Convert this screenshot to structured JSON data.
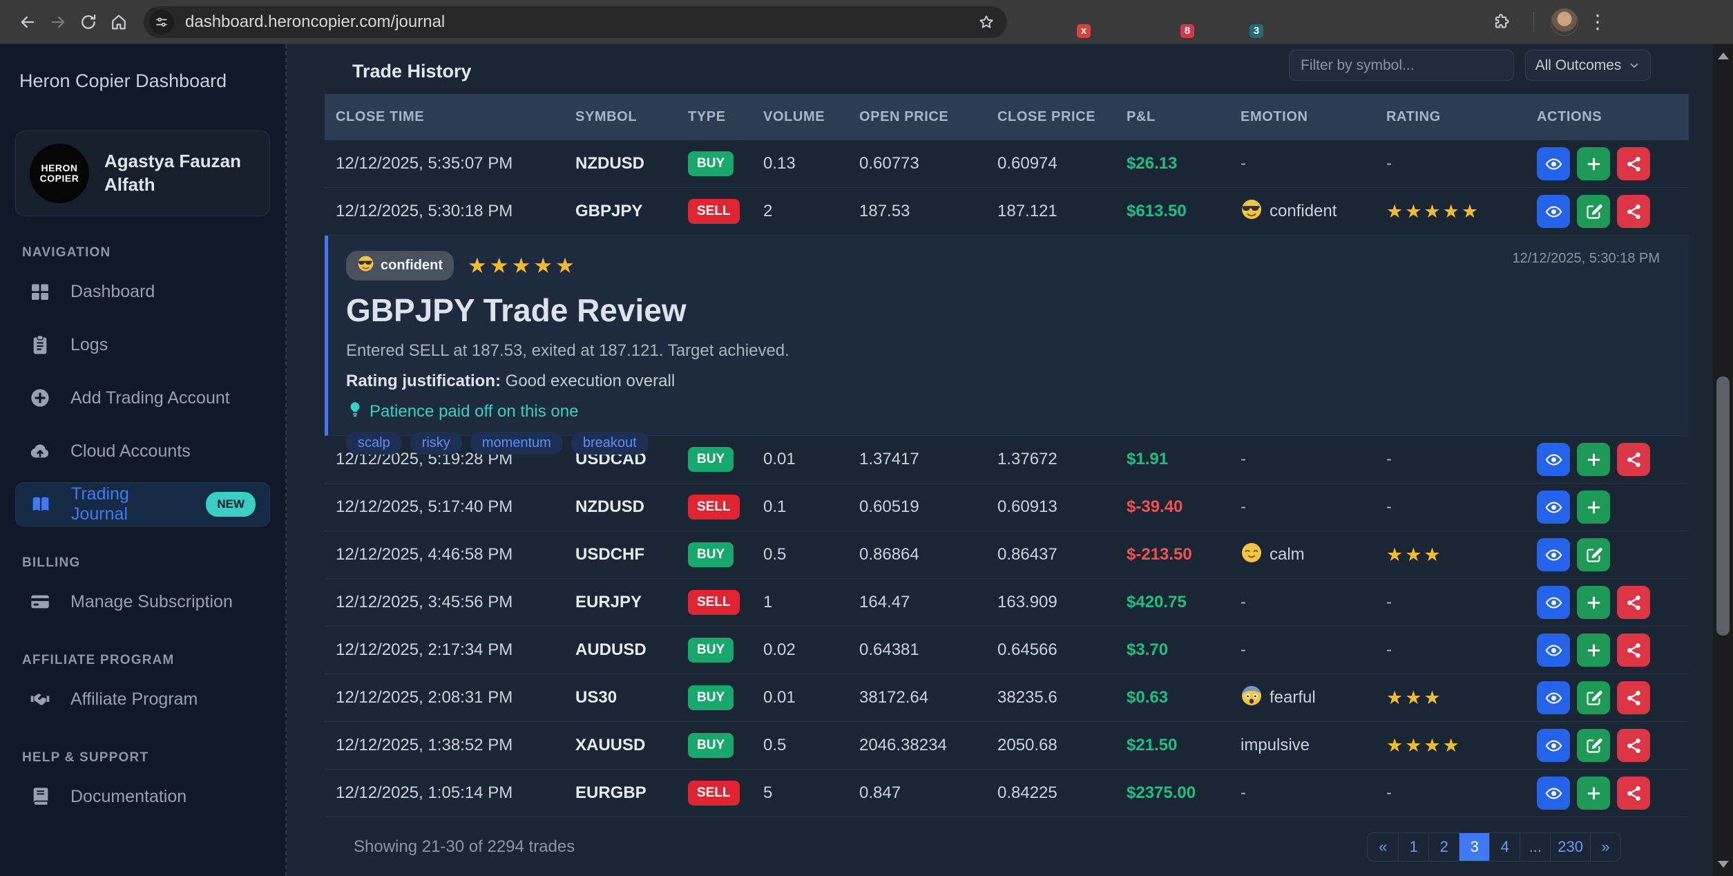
{
  "browser": {
    "url": "dashboard.heroncopier.com/journal",
    "extensions": [
      {
        "name": "camera-extension-icon",
        "shape": "square",
        "color": "#9aa0a6"
      },
      {
        "name": "disabled-gray-extension-icon",
        "shape": "circle",
        "color": "#b6bac0",
        "badge": "x",
        "badge_color": "#e43b3b"
      },
      {
        "name": "orange-flame-extension-icon",
        "shape": "circle",
        "color": "#f4730c"
      },
      {
        "name": "blue-snowflake-extension-icon",
        "shape": "square",
        "color": "#3b82f6"
      },
      {
        "name": "fox-extension-icon",
        "shape": "square",
        "color": "#ef6630",
        "badge": "8",
        "badge_color": "#d9344a"
      },
      {
        "name": "green-cursor-extension-icon",
        "shape": "circle",
        "color": "#3ec06a"
      },
      {
        "name": "blue-shield-extension-icon",
        "shape": "square",
        "color": "#2f6fed",
        "badge": "3",
        "badge_color": "#226b78"
      },
      {
        "name": "todoist-extension-icon",
        "shape": "square",
        "color": "#e44332"
      },
      {
        "name": "bug-extension-icon",
        "shape": "square",
        "color": "#56585c"
      },
      {
        "name": "sync-extension-icon",
        "shape": "square",
        "color": "#505358"
      },
      {
        "name": "kite-extension-icon",
        "shape": "square",
        "color": "#1ea362"
      },
      {
        "name": "mask-extension-icon",
        "shape": "square",
        "color": "#41302c"
      },
      {
        "name": "shield-gradient-extension-icon",
        "shape": "circle",
        "color": "#2b6df0"
      }
    ]
  },
  "sidebar": {
    "app_title": "Heron Copier Dashboard",
    "profile": {
      "name": "Agastya Fauzan Alfath",
      "logo_line1": "HERON",
      "logo_line2": "COPIER"
    },
    "sections": [
      {
        "label": "NAVIGATION",
        "items": [
          {
            "label": "Dashboard",
            "icon": "dashboard-grid-icon",
            "active": false
          },
          {
            "label": "Logs",
            "icon": "logs-clipboard-icon",
            "active": false
          },
          {
            "label": "Add Trading Account",
            "icon": "plus-circle-icon",
            "active": false
          },
          {
            "label": "Cloud Accounts",
            "icon": "cloud-upload-icon",
            "active": false
          },
          {
            "label": "Trading Journal",
            "icon": "book-open-icon",
            "active": true,
            "badge": "NEW"
          }
        ]
      },
      {
        "label": "BILLING",
        "items": [
          {
            "label": "Manage Subscription",
            "icon": "credit-card-icon",
            "active": false
          }
        ]
      },
      {
        "label": "AFFILIATE PROGRAM",
        "items": [
          {
            "label": "Affiliate Program",
            "icon": "handshake-icon",
            "active": false
          }
        ]
      },
      {
        "label": "HELP & SUPPORT",
        "items": [
          {
            "label": "Documentation",
            "icon": "book-icon",
            "active": false
          }
        ]
      }
    ]
  },
  "main": {
    "title": "Trade History",
    "filter_placeholder": "Filter by symbol...",
    "outcome_filter": "All Outcomes",
    "empty_cell": "-",
    "table": {
      "columns": [
        "CLOSE TIME",
        "SYMBOL",
        "TYPE",
        "VOLUME",
        "OPEN PRICE",
        "CLOSE PRICE",
        "P&L",
        "EMOTION",
        "RATING",
        "ACTIONS"
      ],
      "review_row_index": 1,
      "rows": [
        {
          "close_time": "12/12/2025, 5:35:07 PM",
          "symbol": "NZDUSD",
          "type": "BUY",
          "volume": "0.13",
          "open_price": "0.60773",
          "close_price": "0.60974",
          "pnl": "$26.13",
          "pnl_positive": true,
          "emotion": null,
          "emotion_icon": null,
          "rating": 0,
          "actions": [
            "view",
            "add",
            "share"
          ]
        },
        {
          "close_time": "12/12/2025, 5:30:18 PM",
          "symbol": "GBPJPY",
          "type": "SELL",
          "volume": "2",
          "open_price": "187.53",
          "close_price": "187.121",
          "pnl": "$613.50",
          "pnl_positive": true,
          "emotion": "confident",
          "emotion_icon": "confident-emoji-icon",
          "rating": 5,
          "actions": [
            "view",
            "edit",
            "share"
          ]
        },
        {
          "close_time": "12/12/2025, 5:19:28 PM",
          "symbol": "USDCAD",
          "type": "BUY",
          "volume": "0.01",
          "open_price": "1.37417",
          "close_price": "1.37672",
          "pnl": "$1.91",
          "pnl_positive": true,
          "emotion": null,
          "emotion_icon": null,
          "rating": 0,
          "actions": [
            "view",
            "add",
            "share"
          ]
        },
        {
          "close_time": "12/12/2025, 5:17:40 PM",
          "symbol": "NZDUSD",
          "type": "SELL",
          "volume": "0.1",
          "open_price": "0.60519",
          "close_price": "0.60913",
          "pnl": "$-39.40",
          "pnl_positive": false,
          "emotion": null,
          "emotion_icon": null,
          "rating": 0,
          "actions": [
            "view",
            "add"
          ]
        },
        {
          "close_time": "12/12/2025, 4:46:58 PM",
          "symbol": "USDCHF",
          "type": "BUY",
          "volume": "0.5",
          "open_price": "0.86864",
          "close_price": "0.86437",
          "pnl": "$-213.50",
          "pnl_positive": false,
          "emotion": "calm",
          "emotion_icon": "calm-emoji-icon",
          "rating": 3,
          "actions": [
            "view",
            "edit"
          ]
        },
        {
          "close_time": "12/12/2025, 3:45:56 PM",
          "symbol": "EURJPY",
          "type": "SELL",
          "volume": "1",
          "open_price": "164.47",
          "close_price": "163.909",
          "pnl": "$420.75",
          "pnl_positive": true,
          "emotion": null,
          "emotion_icon": null,
          "rating": 0,
          "actions": [
            "view",
            "add",
            "share"
          ]
        },
        {
          "close_time": "12/12/2025, 2:17:34 PM",
          "symbol": "AUDUSD",
          "type": "BUY",
          "volume": "0.02",
          "open_price": "0.64381",
          "close_price": "0.64566",
          "pnl": "$3.70",
          "pnl_positive": true,
          "emotion": null,
          "emotion_icon": null,
          "rating": 0,
          "actions": [
            "view",
            "add",
            "share"
          ]
        },
        {
          "close_time": "12/12/2025, 2:08:31 PM",
          "symbol": "US30",
          "type": "BUY",
          "volume": "0.01",
          "open_price": "38172.64",
          "close_price": "38235.6",
          "pnl": "$0.63",
          "pnl_positive": true,
          "emotion": "fearful",
          "emotion_icon": "fearful-emoji-icon",
          "rating": 3,
          "actions": [
            "view",
            "edit",
            "share"
          ]
        },
        {
          "close_time": "12/12/2025, 1:38:52 PM",
          "symbol": "XAUUSD",
          "type": "BUY",
          "volume": "0.5",
          "open_price": "2046.38234",
          "close_price": "2050.68",
          "pnl": "$21.50",
          "pnl_positive": true,
          "emotion": "impulsive",
          "emotion_icon": null,
          "rating": 4,
          "actions": [
            "view",
            "edit",
            "share"
          ]
        },
        {
          "close_time": "12/12/2025, 1:05:14 PM",
          "symbol": "EURGBP",
          "type": "SELL",
          "volume": "5",
          "open_price": "0.847",
          "close_price": "0.84225",
          "pnl": "$2375.00",
          "pnl_positive": true,
          "emotion": null,
          "emotion_icon": null,
          "rating": 0,
          "actions": [
            "view",
            "add",
            "share"
          ]
        }
      ]
    },
    "review": {
      "badge_label": "confident",
      "badge_icon": "confident-emoji-icon",
      "stars": 5,
      "timestamp": "12/12/2025, 5:30:18 PM",
      "title": "GBPJPY Trade Review",
      "description": "Entered SELL at 187.53, exited at 187.121. Target achieved.",
      "justification_label": "Rating justification:",
      "justification": "Good execution overall",
      "insight": "Patience paid off on this one",
      "tags": [
        "scalp",
        "risky",
        "momentum",
        "breakout"
      ]
    },
    "footer": {
      "showing": "Showing 21-30 of 2294 trades",
      "pages": [
        "«",
        "1",
        "2",
        "3",
        "4",
        "...",
        "230",
        "»"
      ],
      "active_page": "3"
    }
  },
  "colors": {
    "accent_blue": "#3f79f6",
    "buy_green": "#18a86c",
    "sell_red": "#e02432",
    "pnl_positive": "#1fbf83",
    "pnl_negative": "#f05252",
    "star_gold": "#f3bc2c",
    "new_badge_teal": "#39cdc3",
    "insight_teal": "#34d3c3",
    "sidebar_bg": "#0f1927",
    "main_bg": "#1b2634",
    "table_header_bg": "#2d3c52"
  }
}
